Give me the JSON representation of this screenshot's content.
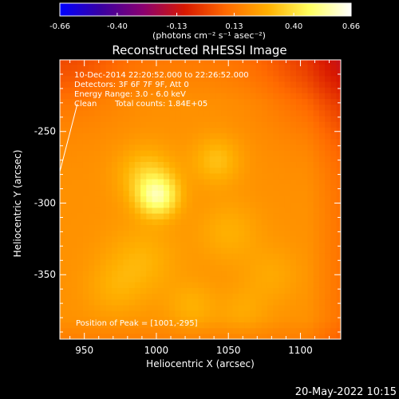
{
  "chart_data": {
    "type": "heatmap",
    "title": "Reconstructed RHESSI Image",
    "xlabel": "Heliocentric X (arcsec)",
    "ylabel": "Heliocentric Y (arcsec)",
    "xlim": [
      933,
      1128
    ],
    "ylim": [
      -395,
      -200
    ],
    "x_ticks": [
      950,
      1000,
      1050,
      1100
    ],
    "y_ticks": [
      -250,
      -300,
      -350
    ],
    "colorbar": {
      "min": -0.66,
      "max": 0.66,
      "ticks": [
        "-0.66",
        "-0.40",
        "-0.13",
        "0.13",
        "0.40",
        "0.66"
      ],
      "tick_values": [
        -0.66,
        -0.4,
        -0.13,
        0.13,
        0.4,
        0.66
      ],
      "unit_label": "(photons cm⁻² s⁻¹ asec⁻²)",
      "colormap": [
        "#0000ff",
        "#3a00a0",
        "#8a0070",
        "#d81800",
        "#ff6a00",
        "#ffb000",
        "#ffff60",
        "#ffffff"
      ]
    },
    "image_value_range": [
      0.1,
      0.66
    ],
    "annotations": {
      "time_range": "10-Dec-2014 22:20:52.000 to 22:26:52.000",
      "detectors": "Detectors: 3F 6F 7F 9F, Att 0",
      "energy": "Energy Range: 3.0 - 6.0 keV",
      "method": "Clean",
      "counts": "Total counts: 1.84E+05",
      "peak": "Position of Peak = [1001,-295]"
    },
    "peak": {
      "x": 1001,
      "y": -295
    },
    "footer_date": "20-May-2022 10:15"
  }
}
